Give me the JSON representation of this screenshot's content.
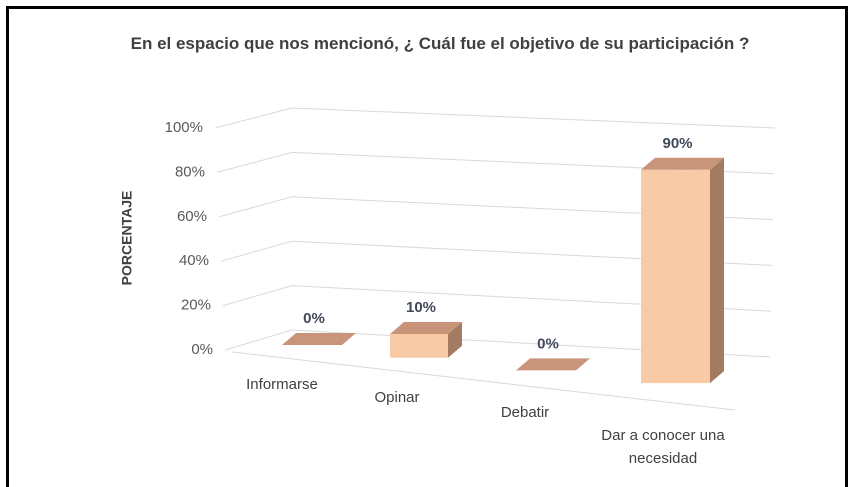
{
  "chart_data": {
    "type": "bar3d",
    "title": "En el espacio que nos mencionó, ¿ Cuál fue el objetivo de su participación ?",
    "ylabel": "PORCENTAJE",
    "categories": [
      "Informarse",
      "Opinar",
      "Debatir",
      "Dar a conocer una necesidad"
    ],
    "values": [
      0,
      10,
      0,
      90
    ],
    "value_labels": [
      "0%",
      "10%",
      "0%",
      "90%"
    ],
    "color": "#f8cba6",
    "ylim": [
      0,
      100
    ],
    "yticks": [
      {
        "value": 0,
        "label": "0%"
      },
      {
        "value": 20,
        "label": "20%"
      },
      {
        "value": 40,
        "label": "40%"
      },
      {
        "value": 60,
        "label": "60%"
      },
      {
        "value": 80,
        "label": "80%"
      },
      {
        "value": 100,
        "label": "100%"
      }
    ],
    "grid": true
  }
}
